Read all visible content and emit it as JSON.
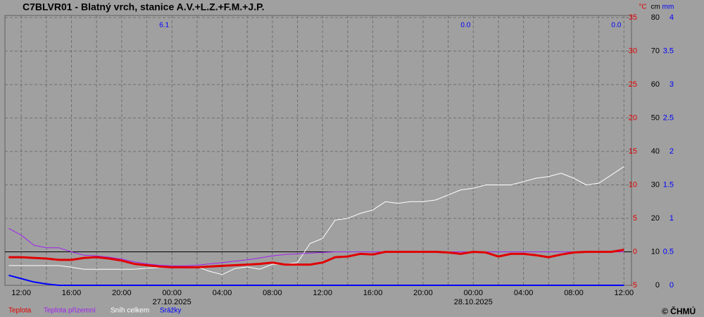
{
  "chart_data": {
    "type": "line",
    "title": "C7BLVR01 - Blatný vrch, stanice A.V.+L.Z.+F.M.+J.P.",
    "x": [
      11,
      12,
      13,
      14,
      15,
      16,
      17,
      18,
      19,
      20,
      21,
      22,
      23,
      24,
      25,
      26,
      27,
      28,
      29,
      30,
      31,
      32,
      33,
      34,
      35,
      36,
      37,
      38,
      39,
      40,
      41,
      42,
      43,
      44,
      45,
      46,
      47,
      48,
      49,
      50,
      51,
      52,
      53,
      54,
      55,
      56,
      57,
      58,
      59,
      60
    ],
    "xlim": [
      10.7,
      60.6
    ],
    "xticks": [
      {
        "value": 12,
        "label": "12:00"
      },
      {
        "value": 16,
        "label": "16:00"
      },
      {
        "value": 20,
        "label": "20:00"
      },
      {
        "value": 24,
        "label": "00:00"
      },
      {
        "value": 28,
        "label": "04:00"
      },
      {
        "value": 32,
        "label": "08:00"
      },
      {
        "value": 36,
        "label": "12:00"
      },
      {
        "value": 40,
        "label": "16:00"
      },
      {
        "value": 44,
        "label": "20:00"
      },
      {
        "value": 48,
        "label": "00:00"
      },
      {
        "value": 52,
        "label": "04:00"
      },
      {
        "value": 56,
        "label": "08:00"
      },
      {
        "value": 60,
        "label": "12:00"
      }
    ],
    "xminor": [
      14,
      18,
      22,
      26,
      30,
      34,
      38,
      42,
      46,
      50,
      54,
      58
    ],
    "date_labels": [
      {
        "value": 24,
        "label": "27.10.2025"
      },
      {
        "value": 48,
        "label": "28.10.2025"
      }
    ],
    "y_unit": "°C",
    "ylim": [
      -5,
      35
    ],
    "yticks": [
      -5,
      0,
      5,
      10,
      15,
      20,
      25,
      30,
      35
    ],
    "y2_unit": "cm",
    "y2lim": [
      0,
      80
    ],
    "y2ticks": [
      0,
      10,
      20,
      30,
      40,
      50,
      60,
      70,
      80
    ],
    "y3_unit": "mm",
    "y3lim": [
      0,
      4
    ],
    "y3ticks": [
      0,
      0.5,
      1,
      1.5,
      2,
      2.5,
      3,
      3.5,
      4
    ],
    "grid": true,
    "daily_totals": [
      {
        "x": 24,
        "value": 6.1
      },
      {
        "x": 48,
        "value": 0,
        "label": "0.0"
      },
      {
        "x": 60,
        "value": 0,
        "label": "0.0"
      }
    ],
    "series": [
      {
        "name": "Srážky",
        "color": "#0000ff",
        "axis": "y3",
        "values": [
          0.15,
          0.1,
          0.05,
          0.02,
          0,
          0,
          0,
          0,
          0,
          0,
          0,
          0,
          0,
          0,
          0,
          0,
          0,
          0,
          0,
          0,
          0,
          0,
          0,
          0,
          0,
          0,
          0,
          0,
          0,
          0,
          0,
          0,
          0,
          0,
          0,
          0,
          0,
          0,
          0,
          0,
          0,
          0,
          0,
          0,
          0,
          0,
          0,
          0,
          0,
          0
        ]
      },
      {
        "name": "Sníh celkem",
        "color": "#ffffff",
        "axis": "y2",
        "values": [
          5.9,
          5.9,
          5.9,
          5.9,
          5.9,
          5.4,
          4.8,
          4.8,
          4.8,
          4.8,
          4.8,
          5.1,
          5.3,
          5.3,
          5.5,
          5.5,
          4.2,
          3.2,
          5.0,
          5.5,
          4.8,
          6.3,
          6.3,
          6.8,
          12.5,
          14,
          19.5,
          20,
          21.5,
          22.5,
          25,
          24.5,
          25,
          25,
          25.5,
          27,
          28.5,
          29,
          30,
          30,
          30,
          31,
          32,
          32.5,
          33.5,
          32,
          30,
          30.5,
          33,
          35.5
        ]
      },
      {
        "name": "Teplota přízemní",
        "color": "#a020f0",
        "axis": "y",
        "values": [
          3.5,
          2.5,
          1.0,
          0.6,
          0.6,
          0,
          -0.5,
          -0.6,
          -0.8,
          -1.1,
          -1.5,
          -1.8,
          -2.0,
          -2.1,
          -2.1,
          -2.0,
          -1.8,
          -1.6,
          -1.4,
          -1.2,
          -0.9,
          -0.6,
          -0.4,
          -0.3,
          -0.2,
          -0.1,
          0,
          0,
          0,
          0,
          0,
          0,
          0,
          0,
          0,
          0,
          0,
          0,
          0,
          0,
          0,
          0,
          0,
          0,
          0,
          0,
          0,
          0,
          0,
          0
        ]
      },
      {
        "name": "Teplota",
        "color": "#e00000",
        "axis": "y",
        "values": [
          -0.8,
          -0.8,
          -0.9,
          -1.0,
          -1.2,
          -1.2,
          -0.9,
          -0.8,
          -1.0,
          -1.3,
          -1.8,
          -2.0,
          -2.2,
          -2.3,
          -2.3,
          -2.3,
          -2.2,
          -2.1,
          -2.0,
          -1.9,
          -1.8,
          -1.6,
          -1.9,
          -1.9,
          -1.9,
          -1.6,
          -0.8,
          -0.7,
          -0.3,
          -0.4,
          0,
          0,
          0,
          0,
          0,
          -0.1,
          -0.3,
          0,
          -0.1,
          -0.7,
          -0.3,
          -0.3,
          -0.5,
          -0.8,
          -0.4,
          -0.1,
          0,
          0,
          0,
          0.3
        ]
      }
    ],
    "copyright": "© ČHMÚ"
  }
}
